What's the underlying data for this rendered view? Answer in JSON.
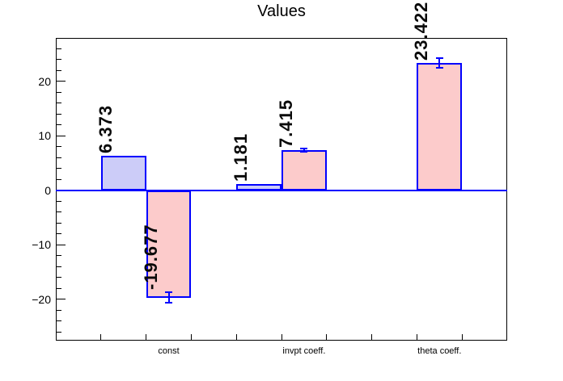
{
  "chart_data": {
    "type": "bar",
    "title": "Values",
    "categories": [
      "const",
      "invpt coeff.",
      "theta coeff."
    ],
    "series": [
      {
        "name": "blue",
        "fill": "#ccccf8",
        "values": [
          6.373,
          1.181,
          null
        ]
      },
      {
        "name": "pink",
        "fill": "#fccbcb",
        "values": [
          -19.677,
          7.415,
          23.422
        ]
      }
    ],
    "bars": [
      {
        "bin": 1,
        "series": "blue",
        "value": 6.373,
        "label": "6.373",
        "error": 0
      },
      {
        "bin": 2,
        "series": "pink",
        "value": -19.677,
        "label": "-19.677",
        "error": 1.0
      },
      {
        "bin": 4,
        "series": "blue",
        "value": 1.181,
        "label": "1.181",
        "error": 0
      },
      {
        "bin": 5,
        "series": "pink",
        "value": 7.415,
        "label": "7.415",
        "error": 0.3
      },
      {
        "bin": 8,
        "series": "pink",
        "value": 23.422,
        "label": "23.422",
        "error": 0.9
      }
    ],
    "x_axis": {
      "n_bins": 10,
      "bin_labels": [
        {
          "bin": 2,
          "text": "const"
        },
        {
          "bin": 5,
          "text": "invpt coeff."
        },
        {
          "bin": 8,
          "text": "theta coeff."
        }
      ]
    },
    "y_axis": {
      "min": -27.6,
      "max": 28.0,
      "minor_step": 2,
      "major_ticks": [
        {
          "value": 20,
          "label": "20"
        },
        {
          "value": 10,
          "label": "10"
        },
        {
          "value": 0,
          "label": "0"
        },
        {
          "value": -10,
          "label": "−10"
        },
        {
          "value": -20,
          "label": "−20"
        }
      ]
    },
    "colors": {
      "bar_border": "#0000ff",
      "zero_line": "#0000ff",
      "error_bar": "#0000ff",
      "frame": "#000000",
      "text": "#000000",
      "background": "#ffffff"
    },
    "grid": false,
    "legend": null
  }
}
